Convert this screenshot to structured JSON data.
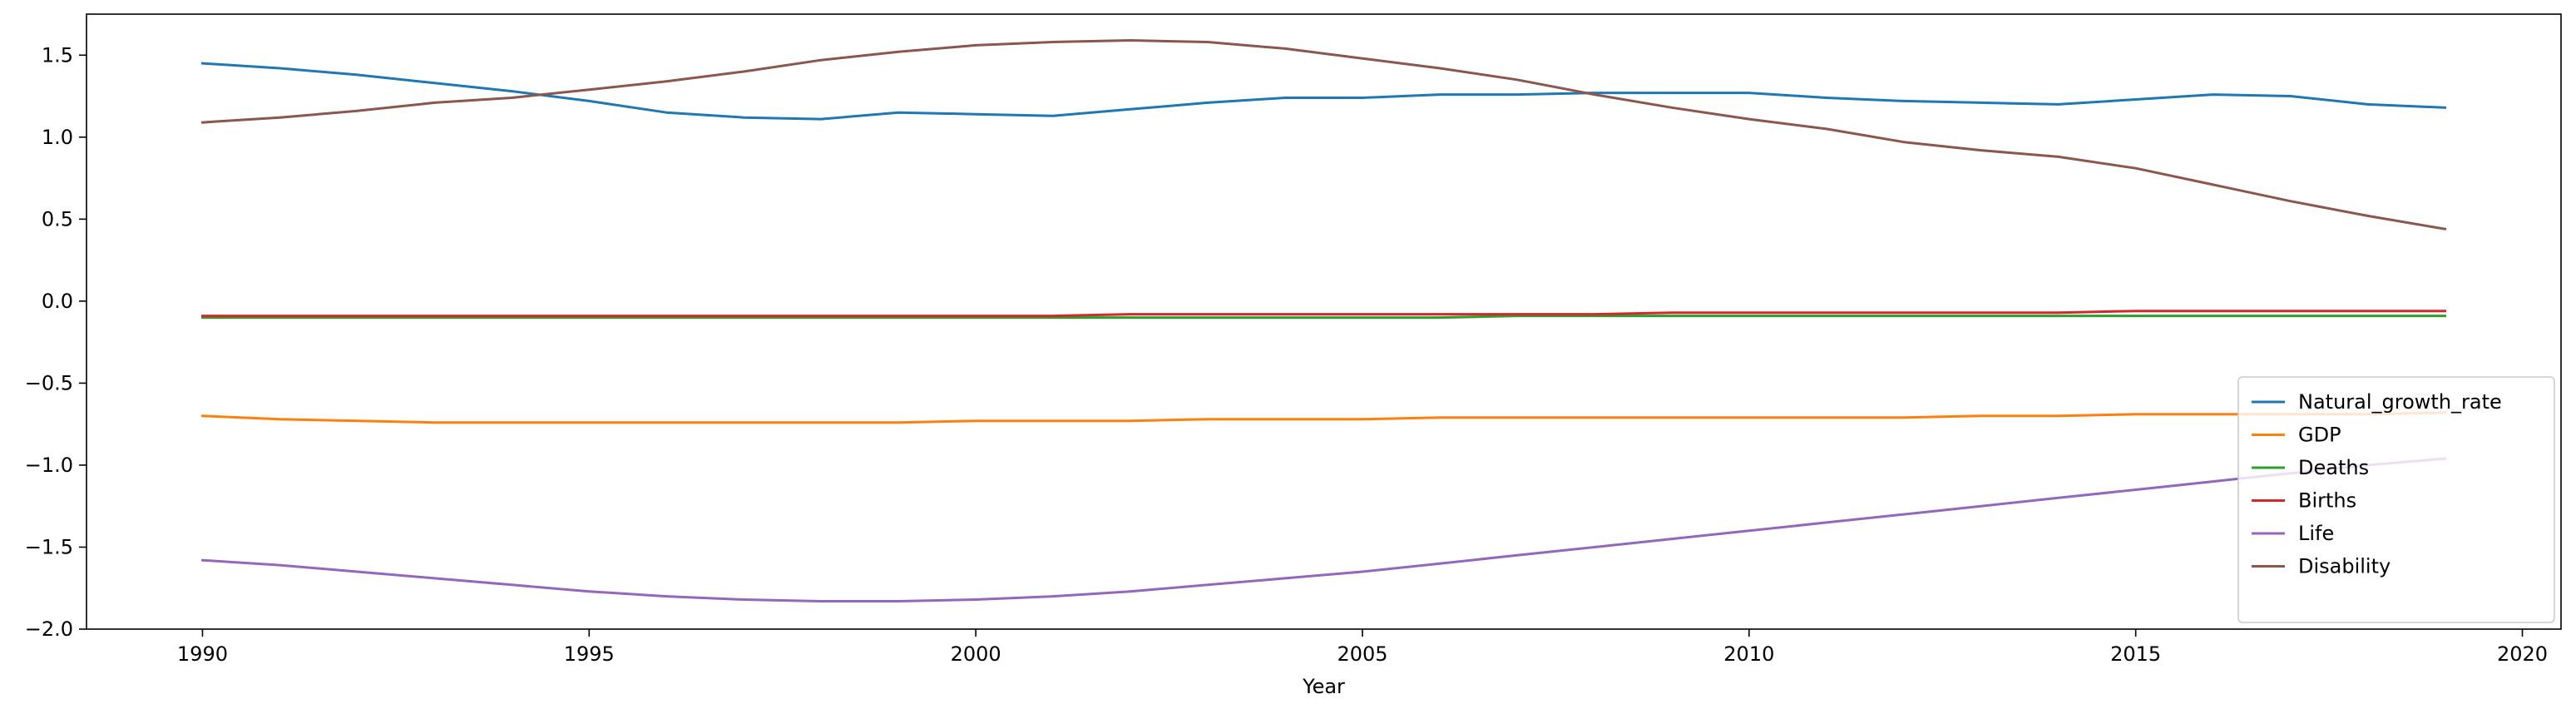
{
  "chart_data": {
    "type": "line",
    "title": "",
    "xlabel": "Year",
    "ylabel": "",
    "xlim": [
      1988.5,
      2020.5
    ],
    "ylim": [
      -2.0,
      1.75
    ],
    "xticks": [
      1990,
      1995,
      2000,
      2005,
      2010,
      2015,
      2020
    ],
    "yticks": [
      -2.0,
      -1.5,
      -1.0,
      -0.5,
      0.0,
      0.5,
      1.0,
      1.5
    ],
    "ytick_labels": [
      "−2.0",
      "−1.5",
      "−1.0",
      "−0.5",
      "0.0",
      "0.5",
      "1.0",
      "1.5"
    ],
    "grid": false,
    "legend_position": "lower-right",
    "x": [
      1990,
      1991,
      1992,
      1993,
      1994,
      1995,
      1996,
      1997,
      1998,
      1999,
      2000,
      2001,
      2002,
      2003,
      2004,
      2005,
      2006,
      2007,
      2008,
      2009,
      2010,
      2011,
      2012,
      2013,
      2014,
      2015,
      2016,
      2017,
      2018,
      2019
    ],
    "series": [
      {
        "name": "Natural_growth_rate",
        "color": "#1f77b4",
        "values": [
          1.45,
          1.42,
          1.38,
          1.33,
          1.28,
          1.22,
          1.15,
          1.12,
          1.11,
          1.15,
          1.14,
          1.13,
          1.17,
          1.21,
          1.24,
          1.24,
          1.26,
          1.26,
          1.27,
          1.27,
          1.27,
          1.24,
          1.22,
          1.21,
          1.2,
          1.23,
          1.26,
          1.25,
          1.2,
          1.18
        ]
      },
      {
        "name": "GDP",
        "color": "#ff7f0e",
        "values": [
          -0.7,
          -0.72,
          -0.73,
          -0.74,
          -0.74,
          -0.74,
          -0.74,
          -0.74,
          -0.74,
          -0.74,
          -0.73,
          -0.73,
          -0.73,
          -0.72,
          -0.72,
          -0.72,
          -0.71,
          -0.71,
          -0.71,
          -0.71,
          -0.71,
          -0.71,
          -0.71,
          -0.7,
          -0.7,
          -0.69,
          -0.69,
          -0.69,
          -0.69,
          -0.68
        ]
      },
      {
        "name": "Deaths",
        "color": "#2ca02c",
        "values": [
          -0.1,
          -0.1,
          -0.1,
          -0.1,
          -0.1,
          -0.1,
          -0.1,
          -0.1,
          -0.1,
          -0.1,
          -0.1,
          -0.1,
          -0.1,
          -0.1,
          -0.1,
          -0.1,
          -0.1,
          -0.09,
          -0.09,
          -0.09,
          -0.09,
          -0.09,
          -0.09,
          -0.09,
          -0.09,
          -0.09,
          -0.09,
          -0.09,
          -0.09,
          -0.09
        ]
      },
      {
        "name": "Births",
        "color": "#d62728",
        "values": [
          -0.09,
          -0.09,
          -0.09,
          -0.09,
          -0.09,
          -0.09,
          -0.09,
          -0.09,
          -0.09,
          -0.09,
          -0.09,
          -0.09,
          -0.08,
          -0.08,
          -0.08,
          -0.08,
          -0.08,
          -0.08,
          -0.08,
          -0.07,
          -0.07,
          -0.07,
          -0.07,
          -0.07,
          -0.07,
          -0.06,
          -0.06,
          -0.06,
          -0.06,
          -0.06
        ]
      },
      {
        "name": "Life",
        "color": "#9467bd",
        "values": [
          -1.58,
          -1.61,
          -1.65,
          -1.69,
          -1.73,
          -1.77,
          -1.8,
          -1.82,
          -1.83,
          -1.83,
          -1.82,
          -1.8,
          -1.77,
          -1.73,
          -1.69,
          -1.65,
          -1.6,
          -1.55,
          -1.5,
          -1.45,
          -1.4,
          -1.35,
          -1.3,
          -1.25,
          -1.2,
          -1.15,
          -1.1,
          -1.05,
          -1.0,
          -0.96
        ]
      },
      {
        "name": "Disability",
        "color": "#8c564b",
        "values": [
          1.09,
          1.12,
          1.16,
          1.21,
          1.24,
          1.29,
          1.34,
          1.4,
          1.47,
          1.52,
          1.56,
          1.58,
          1.59,
          1.58,
          1.54,
          1.48,
          1.42,
          1.35,
          1.26,
          1.18,
          1.11,
          1.05,
          0.97,
          0.92,
          0.88,
          0.81,
          0.71,
          0.61,
          0.52,
          0.44
        ]
      }
    ]
  }
}
